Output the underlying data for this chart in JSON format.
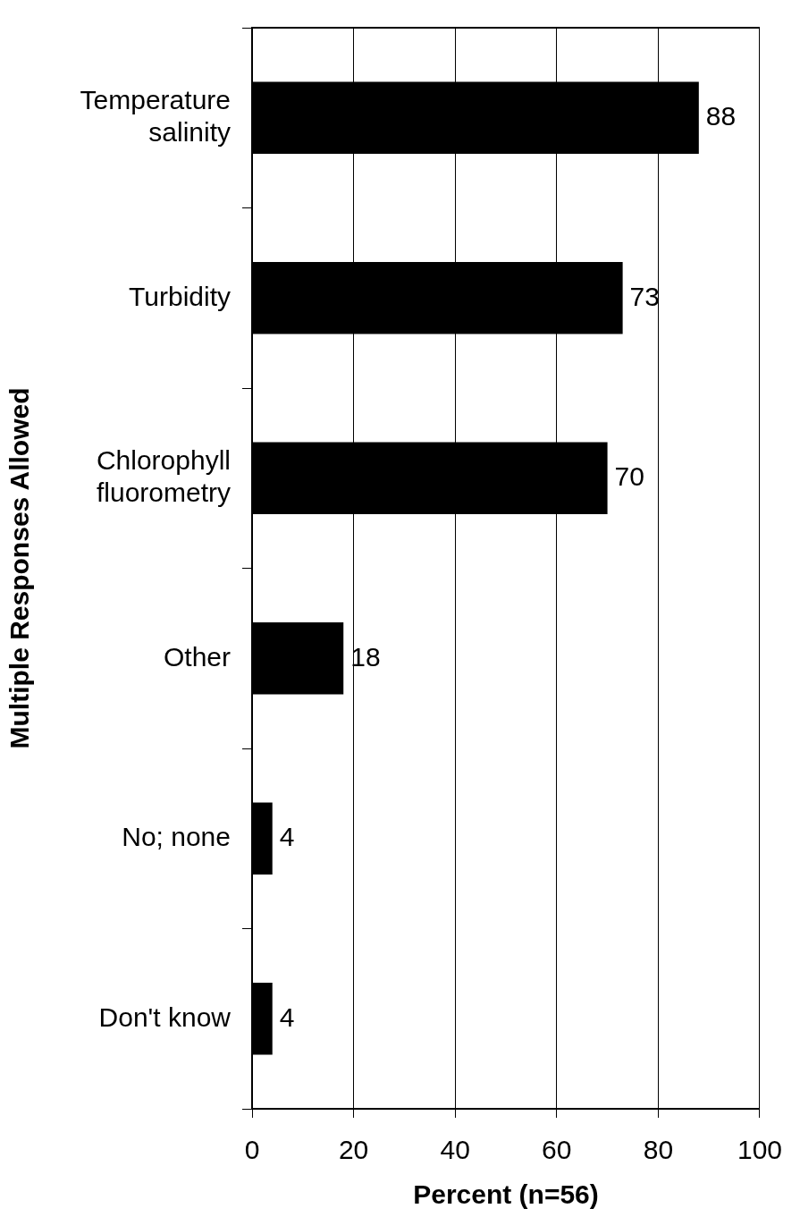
{
  "chart_data": {
    "type": "bar",
    "orientation": "horizontal",
    "categories": [
      "Temperature salinity",
      "Turbidity",
      "Chlorophyll fluorometry",
      "Other",
      "No; none",
      "Don't know"
    ],
    "values": [
      88,
      73,
      70,
      18,
      4,
      4
    ],
    "color": "#000000",
    "xlim": [
      0,
      100
    ],
    "xticks": [
      0,
      20,
      40,
      60,
      80,
      100
    ],
    "xlabel": "Percent (n=56)",
    "ylabel": "Multiple Responses Allowed",
    "grid": "x",
    "data_labels": true
  }
}
